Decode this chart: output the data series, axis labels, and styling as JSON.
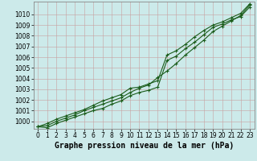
{
  "xlabel": "Graphe pression niveau de la mer (hPa)",
  "ylim": [
    999.3,
    1011.2
  ],
  "xlim": [
    -0.5,
    23.5
  ],
  "yticks": [
    1000,
    1001,
    1002,
    1003,
    1004,
    1005,
    1006,
    1007,
    1008,
    1009,
    1010
  ],
  "xticks": [
    0,
    1,
    2,
    3,
    4,
    5,
    6,
    7,
    8,
    9,
    10,
    11,
    12,
    13,
    14,
    15,
    16,
    17,
    18,
    19,
    20,
    21,
    22,
    23
  ],
  "bg_color": "#cceaea",
  "line_color": "#1a5c1a",
  "grid_color": "#b0c8c8",
  "series1": [
    999.5,
    999.8,
    1000.2,
    1000.5,
    1000.8,
    1001.1,
    1001.5,
    1001.9,
    1002.2,
    1002.5,
    1003.1,
    1003.2,
    1003.5,
    1003.8,
    1006.2,
    1006.6,
    1007.2,
    1007.9,
    1008.5,
    1009.0,
    1009.3,
    1009.7,
    1010.1,
    1011.0
  ],
  "series2": [
    999.5,
    999.6,
    1000.0,
    1000.3,
    1000.6,
    1001.0,
    1001.3,
    1001.6,
    1001.9,
    1002.2,
    1002.7,
    1003.1,
    1003.4,
    1004.1,
    1004.7,
    1005.4,
    1006.2,
    1006.9,
    1007.6,
    1008.4,
    1008.9,
    1009.4,
    1009.9,
    1010.9
  ],
  "series3": [
    999.5,
    999.4,
    999.8,
    1000.1,
    1000.4,
    1000.7,
    1001.0,
    1001.2,
    1001.6,
    1001.9,
    1002.4,
    1002.7,
    1002.9,
    1003.2,
    1005.7,
    1006.1,
    1006.8,
    1007.4,
    1008.1,
    1008.8,
    1009.1,
    1009.5,
    1009.8,
    1010.7
  ],
  "marker": "+",
  "markersize": 3,
  "markeredgewidth": 0.8,
  "linewidth": 0.8,
  "xlabel_fontsize": 7,
  "tick_fontsize": 5.5
}
